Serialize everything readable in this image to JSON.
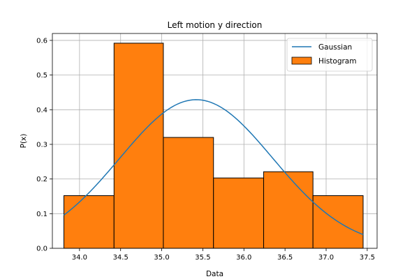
{
  "chart_data": {
    "type": "bar",
    "title": "Left motion y direction",
    "xlabel": "Data",
    "ylabel": "P(x)",
    "xlim": [
      33.67,
      37.62
    ],
    "ylim": [
      0,
      0.62
    ],
    "xticks": [
      "34.0",
      "34.5",
      "35.0",
      "35.5",
      "36.0",
      "36.5",
      "37.0",
      "37.5"
    ],
    "yticks": [
      "0.0",
      "0.1",
      "0.2",
      "0.3",
      "0.4",
      "0.5",
      "0.6"
    ],
    "grid": true,
    "legend_position": "top-right",
    "histogram": {
      "name": "Histogram",
      "color": "#ff7f0e",
      "edgecolor": "#000000",
      "bins": [
        {
          "x0": 33.81,
          "x1": 34.42,
          "value": 0.152
        },
        {
          "x0": 34.42,
          "x1": 35.02,
          "value": 0.592
        },
        {
          "x0": 35.02,
          "x1": 35.63,
          "value": 0.32
        },
        {
          "x0": 35.63,
          "x1": 36.24,
          "value": 0.203
        },
        {
          "x0": 36.24,
          "x1": 36.84,
          "value": 0.221
        },
        {
          "x0": 36.84,
          "x1": 37.45,
          "value": 0.152
        }
      ]
    },
    "gaussian": {
      "name": "Gaussian",
      "color": "#1f77b4",
      "mean": 35.42,
      "std": 0.93,
      "x_range": [
        33.81,
        37.45
      ]
    },
    "legend": [
      {
        "label": "Gaussian",
        "kind": "line",
        "color": "#1f77b4"
      },
      {
        "label": "Histogram",
        "kind": "patch",
        "color": "#ff7f0e"
      }
    ]
  }
}
